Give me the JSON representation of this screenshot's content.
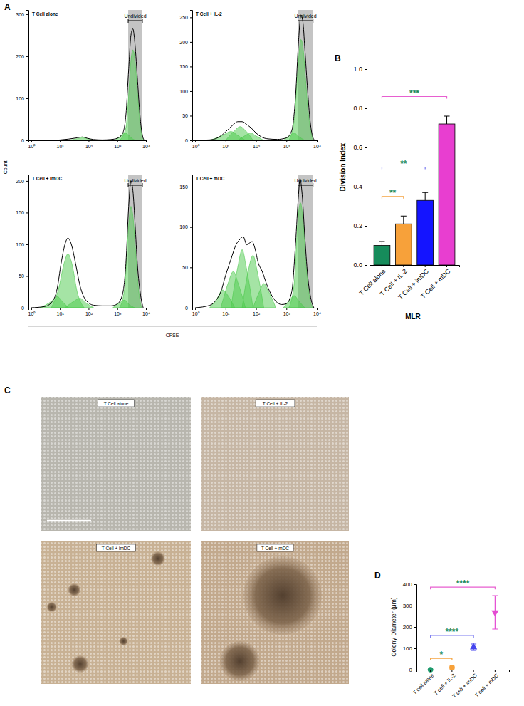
{
  "chart_data": [
    {
      "type": "line",
      "annotations": [
        "A"
      ],
      "title": "T Cell alone",
      "xlabel": "CFSE",
      "ylabel": "Count",
      "log": "x",
      "xlim": [
        0.8,
        10000
      ],
      "xticks": [
        {
          "value": 1,
          "label": "10⁰"
        },
        {
          "value": 10,
          "label": "10¹"
        },
        {
          "value": 100,
          "label": "10²"
        },
        {
          "value": 1000,
          "label": "10³"
        },
        {
          "value": 10000,
          "label": "10⁴"
        }
      ],
      "ylim": [
        0,
        310
      ],
      "yticks": [
        0,
        100,
        200,
        300
      ],
      "gate": {
        "range": [
          2400,
          7500
        ],
        "label": "Undivided"
      },
      "series": [
        {
          "type": "area",
          "color": "#4cc94c",
          "x": [
            1200,
            2000,
            2500,
            3000,
            3500,
            4000,
            5000,
            6000,
            7000,
            8500
          ],
          "values": [
            0,
            30,
            110,
            190,
            215,
            200,
            120,
            50,
            15,
            0
          ]
        },
        {
          "type": "area",
          "color": "#4cc94c",
          "x": [
            800,
            1200,
            1800,
            2500,
            3500,
            5000
          ],
          "values": [
            0,
            8,
            18,
            12,
            3,
            0
          ]
        },
        {
          "type": "area",
          "color": "#4cc94c",
          "x": [
            20,
            40,
            60,
            90,
            150
          ],
          "values": [
            0,
            4,
            6,
            4,
            0
          ]
        },
        {
          "type": "line",
          "color": "#000000",
          "x": [
            1,
            5,
            10,
            20,
            40,
            60,
            90,
            150,
            300,
            600,
            1000,
            1500,
            2000,
            2500,
            3000,
            3500,
            4000,
            5000,
            6000,
            7000,
            8000,
            9000
          ],
          "values": [
            0,
            0,
            1,
            3,
            6,
            8,
            5,
            2,
            1,
            2,
            5,
            15,
            60,
            170,
            250,
            265,
            240,
            150,
            70,
            25,
            5,
            0
          ]
        }
      ]
    },
    {
      "type": "line",
      "title": "T Cell + IL-2",
      "log": "x",
      "xlim": [
        0.8,
        10000
      ],
      "xticks": [
        {
          "value": 1,
          "label": "10⁰"
        },
        {
          "value": 10,
          "label": "10¹"
        },
        {
          "value": 100,
          "label": "10²"
        },
        {
          "value": 1000,
          "label": "10³"
        },
        {
          "value": 10000,
          "label": "10⁴"
        }
      ],
      "ylim": [
        0,
        265
      ],
      "yticks": [
        0,
        50,
        100,
        150,
        200,
        250
      ],
      "gate": {
        "range": [
          2400,
          7500
        ],
        "label": "Undivided"
      },
      "series": [
        {
          "type": "area",
          "color": "#4cc94c",
          "x": [
            1200,
            1800,
            2400,
            3000,
            3500,
            4200,
            5000,
            6500,
            8000
          ],
          "values": [
            0,
            40,
            150,
            205,
            190,
            130,
            70,
            15,
            0
          ]
        },
        {
          "type": "area",
          "color": "#4cc94c",
          "x": [
            3,
            8,
            15,
            25,
            45
          ],
          "values": [
            0,
            10,
            18,
            10,
            0
          ]
        },
        {
          "type": "area",
          "color": "#4cc94c",
          "x": [
            10,
            20,
            30,
            45,
            80
          ],
          "values": [
            0,
            20,
            28,
            20,
            0
          ]
        },
        {
          "type": "area",
          "color": "#4cc94c",
          "x": [
            25,
            45,
            65,
            100,
            180
          ],
          "values": [
            0,
            10,
            15,
            9,
            0
          ]
        },
        {
          "type": "area",
          "color": "#4cc94c",
          "x": [
            800,
            1300,
            1800,
            2500,
            4000
          ],
          "values": [
            0,
            10,
            15,
            8,
            0
          ]
        },
        {
          "type": "line",
          "color": "#000000",
          "x": [
            1,
            3,
            5,
            8,
            12,
            18,
            25,
            35,
            50,
            70,
            100,
            150,
            250,
            500,
            1000,
            1500,
            2000,
            2500,
            3000,
            3500,
            4000,
            5000,
            6000,
            7000,
            8500
          ],
          "values": [
            0,
            1,
            4,
            12,
            22,
            32,
            38,
            38,
            32,
            25,
            15,
            7,
            3,
            2,
            5,
            20,
            90,
            200,
            255,
            240,
            190,
            100,
            40,
            12,
            0
          ]
        }
      ]
    },
    {
      "type": "line",
      "title": "T Cell + imDC",
      "log": "x",
      "xlim": [
        0.8,
        10000
      ],
      "xticks": [
        {
          "value": 1,
          "label": "10⁰"
        },
        {
          "value": 10,
          "label": "10¹"
        },
        {
          "value": 100,
          "label": "10²"
        },
        {
          "value": 1000,
          "label": "10³"
        },
        {
          "value": 10000,
          "label": "10⁴"
        }
      ],
      "ylim": [
        0,
        210
      ],
      "yticks": [
        0,
        50,
        100,
        150,
        200
      ],
      "gate": {
        "range": [
          2400,
          7500
        ],
        "label": "Undivided"
      },
      "series": [
        {
          "type": "area",
          "color": "#4cc94c",
          "x": [
            1200,
            1800,
            2400,
            3000,
            3600,
            4500,
            5500,
            7000
          ],
          "values": [
            0,
            30,
            120,
            160,
            140,
            80,
            30,
            0
          ]
        },
        {
          "type": "area",
          "color": "#4cc94c",
          "x": [
            5,
            9,
            14,
            19,
            26,
            40,
            70
          ],
          "values": [
            0,
            30,
            70,
            85,
            70,
            25,
            0
          ]
        },
        {
          "type": "area",
          "color": "#4cc94c",
          "x": [
            2,
            5,
            8,
            12,
            20
          ],
          "values": [
            0,
            10,
            18,
            10,
            0
          ]
        },
        {
          "type": "area",
          "color": "#4cc94c",
          "x": [
            15,
            30,
            50,
            80,
            150
          ],
          "values": [
            0,
            10,
            15,
            8,
            0
          ]
        },
        {
          "type": "area",
          "color": "#4cc94c",
          "x": [
            700,
            1200,
            1800,
            2600,
            4000
          ],
          "values": [
            0,
            8,
            12,
            5,
            0
          ]
        },
        {
          "type": "line",
          "color": "#000000",
          "x": [
            1,
            3,
            5,
            8,
            11,
            15,
            19,
            25,
            35,
            50,
            80,
            150,
            300,
            600,
            1000,
            1500,
            2000,
            2500,
            3000,
            3500,
            4200,
            5000,
            6500,
            8000
          ],
          "values": [
            0,
            2,
            8,
            30,
            70,
            100,
            110,
            100,
            70,
            35,
            12,
            4,
            3,
            3,
            6,
            20,
            70,
            160,
            200,
            185,
            130,
            70,
            20,
            0
          ]
        }
      ]
    },
    {
      "type": "line",
      "title": "T Cell + mDC",
      "log": "x",
      "xlim": [
        0.8,
        10000
      ],
      "xticks": [
        {
          "value": 1,
          "label": "10⁰"
        },
        {
          "value": 10,
          "label": "10¹"
        },
        {
          "value": 100,
          "label": "10²"
        },
        {
          "value": 1000,
          "label": "10³"
        },
        {
          "value": 10000,
          "label": "10⁴"
        }
      ],
      "ylim": [
        0,
        165
      ],
      "yticks": [
        0,
        50,
        100,
        150
      ],
      "gate": {
        "range": [
          2400,
          7500
        ],
        "label": "Undivided"
      },
      "series": [
        {
          "type": "area",
          "color": "#4cc94c",
          "x": [
            1200,
            1800,
            2400,
            2900,
            3500,
            4500,
            6000,
            7500
          ],
          "values": [
            0,
            30,
            110,
            130,
            110,
            50,
            10,
            0
          ]
        },
        {
          "type": "area",
          "color": "#4cc94c",
          "x": [
            3,
            5,
            8,
            12,
            20
          ],
          "values": [
            0,
            10,
            22,
            15,
            0
          ]
        },
        {
          "type": "area",
          "color": "#4cc94c",
          "x": [
            7,
            12,
            18,
            26,
            45
          ],
          "values": [
            0,
            30,
            45,
            30,
            0
          ]
        },
        {
          "type": "area",
          "color": "#4cc94c",
          "x": [
            15,
            25,
            35,
            48,
            80
          ],
          "values": [
            0,
            50,
            72,
            50,
            0
          ]
        },
        {
          "type": "area",
          "color": "#4cc94c",
          "x": [
            35,
            55,
            80,
            110,
            180
          ],
          "values": [
            0,
            45,
            65,
            45,
            0
          ]
        },
        {
          "type": "area",
          "color": "#4cc94c",
          "x": [
            80,
            130,
            180,
            260,
            450
          ],
          "values": [
            0,
            20,
            30,
            20,
            0
          ]
        },
        {
          "type": "area",
          "color": "#4cc94c",
          "x": [
            800,
            1300,
            1800,
            2600,
            4000
          ],
          "values": [
            0,
            10,
            15,
            8,
            0
          ]
        },
        {
          "type": "line",
          "color": "#000000",
          "x": [
            1,
            3,
            5,
            7,
            10,
            15,
            22,
            30,
            38,
            50,
            60,
            75,
            90,
            120,
            160,
            220,
            300,
            450,
            700,
            1000,
            1500,
            2000,
            2500,
            2800,
            3300,
            4000,
            5000,
            6500,
            8000
          ],
          "values": [
            0,
            3,
            10,
            20,
            40,
            60,
            78,
            85,
            88,
            78,
            80,
            82,
            75,
            55,
            45,
            30,
            18,
            8,
            4,
            5,
            20,
            80,
            140,
            160,
            140,
            90,
            40,
            10,
            0
          ]
        }
      ]
    },
    {
      "type": "bar",
      "annotations": [
        "B"
      ],
      "xlabel": "MLR",
      "ylabel": "Division Index",
      "categories": [
        "T Cell alone",
        "T Cell + IL-2",
        "T Cell + imDC",
        "T Cell + mDC"
      ],
      "values": [
        0.1,
        0.21,
        0.33,
        0.72
      ],
      "errors": [
        0.02,
        0.04,
        0.04,
        0.04
      ],
      "colors": [
        "#168c5b",
        "#f7a13a",
        "#1414ff",
        "#e83ed0"
      ],
      "ylim": [
        0,
        1
      ],
      "yticks": [
        {
          "value": 0,
          "label": "0.0"
        },
        0.2,
        0.4,
        0.6,
        0.8,
        {
          "value": 1,
          "label": "1.0"
        }
      ],
      "significance": [
        {
          "from": 0,
          "to": 1,
          "label": "**",
          "color": "#f5a442"
        },
        {
          "from": 0,
          "to": 2,
          "label": "**",
          "color": "#7b7bf0"
        },
        {
          "from": 0,
          "to": 3,
          "label": "***",
          "color": "#e75fd0"
        }
      ]
    },
    {
      "type": "image",
      "annotations": [
        "C"
      ],
      "titles": [
        "T Cell alone",
        "T Cell + IL-2",
        "T Cell + imDC",
        "T Cell + mDC"
      ]
    },
    {
      "type": "scatter",
      "annotations": [
        "D"
      ],
      "ylabel": "Colony Diameter (μm)",
      "categories": [
        "T cell alone",
        "T cell + IL-2",
        "T cell + imDC",
        "T cell + mDC"
      ],
      "values": [
        0,
        10,
        105,
        268
      ],
      "errors": [
        0,
        3,
        15,
        78
      ],
      "colors": [
        "#1d9a6c",
        "#f7a13a",
        "#4444ee",
        "#e44ad2"
      ],
      "markers": [
        "circle",
        "square",
        "triangle-up",
        "triangle-down"
      ],
      "ylim": [
        0,
        400
      ],
      "yticks": [
        0,
        100,
        200,
        300,
        400
      ],
      "significance": [
        {
          "from": 0,
          "to": 1,
          "label": "*",
          "color": "#f5a442"
        },
        {
          "from": 0,
          "to": 2,
          "label": "****",
          "color": "#7b7bf0"
        },
        {
          "from": 0,
          "to": 3,
          "label": "****",
          "color": "#e75fd0"
        }
      ]
    }
  ]
}
